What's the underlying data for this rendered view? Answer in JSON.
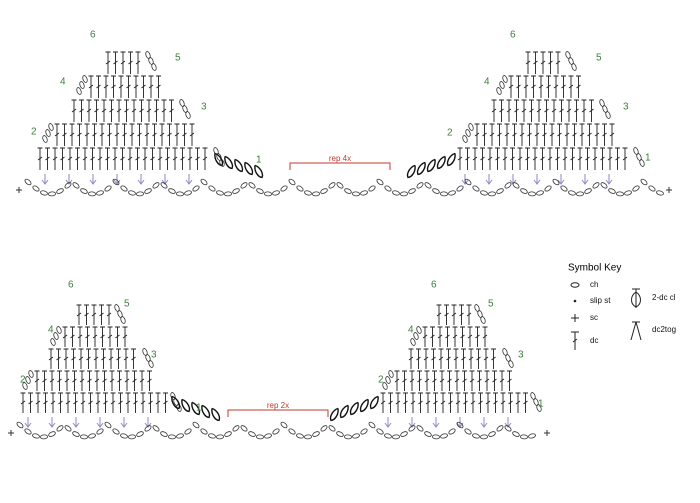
{
  "diagrams": [
    {
      "rows": [
        "1",
        "2",
        "3",
        "4",
        "5",
        "6"
      ],
      "repeat": "rep 4x"
    },
    {
      "rows": [
        "1",
        "2",
        "3",
        "4",
        "5",
        "6"
      ],
      "repeat": "rep 2x"
    }
  ],
  "key": {
    "title": "Symbol Key",
    "items": [
      {
        "label": "ch"
      },
      {
        "label": "slip st"
      },
      {
        "label": "sc"
      },
      {
        "label": "dc"
      },
      {
        "label": "2-dc cl"
      },
      {
        "label": "dc2tog"
      }
    ]
  }
}
